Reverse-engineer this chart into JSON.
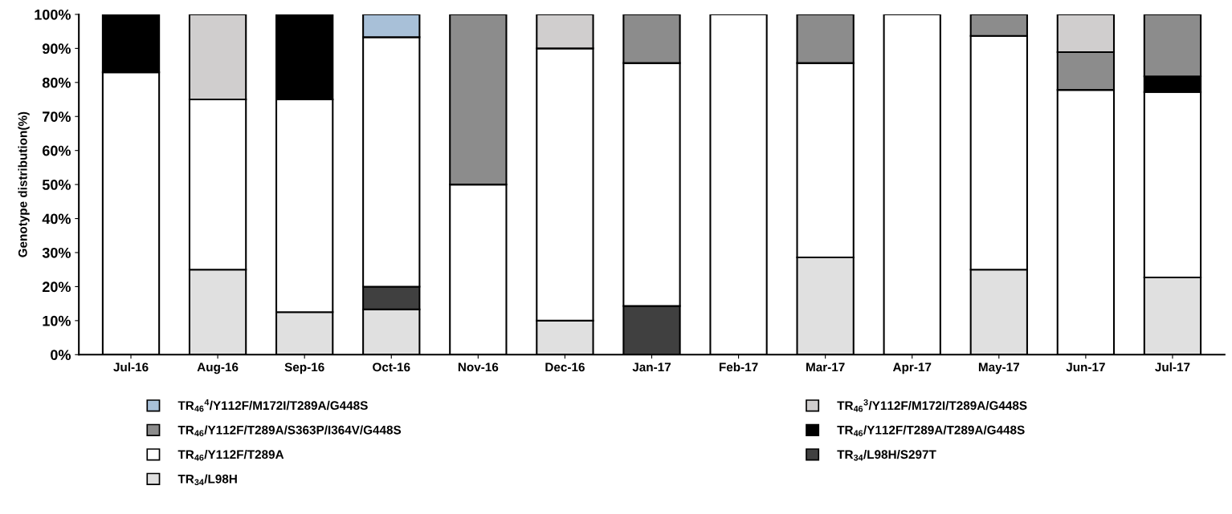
{
  "chart_data": {
    "type": "bar",
    "stacked": true,
    "ylabel": "Genotype distribution(%)",
    "categories": [
      "Jul-16",
      "Aug-16",
      "Sep-16",
      "Oct-16",
      "Nov-16",
      "Dec-16",
      "Jan-17",
      "Feb-17",
      "Mar-17",
      "Apr-17",
      "May-17",
      "Jun-17",
      "Jul-17"
    ],
    "ylim": [
      0,
      100
    ],
    "yticks": [
      {
        "value": 0,
        "label": "0%"
      },
      {
        "value": 10,
        "label": "10%"
      },
      {
        "value": 20,
        "label": "20%"
      },
      {
        "value": 30,
        "label": "30%"
      },
      {
        "value": 40,
        "label": "40%"
      },
      {
        "value": 50,
        "label": "50%"
      },
      {
        "value": 60,
        "label": "60%"
      },
      {
        "value": 70,
        "label": "70%"
      },
      {
        "value": 80,
        "label": "80%"
      },
      {
        "value": 90,
        "label": "90%"
      },
      {
        "value": 100,
        "label": "100%"
      }
    ],
    "grid": false,
    "legend": "bottom",
    "series": [
      {
        "name": "TR$_{34}$/L98H",
        "color": "#e0e0e0",
        "values": [
          0,
          25,
          12.5,
          13.3,
          0,
          10,
          0,
          0,
          28.6,
          0,
          25,
          0,
          22.7
        ]
      },
      {
        "name": "TR$_{34}$/L98H/S297T",
        "color": "#404040",
        "values": [
          0,
          0,
          0,
          6.7,
          0,
          0,
          14.3,
          0,
          0,
          0,
          0,
          0,
          0
        ]
      },
      {
        "name": "TR$_{46}$/Y112F/T289A",
        "color": "#ffffff",
        "values": [
          83,
          50,
          62.5,
          73.3,
          50,
          80,
          71.4,
          100,
          57.1,
          100,
          68.7,
          77.8,
          54.5
        ]
      },
      {
        "name": "TR$_{46}$/Y112F/T289A/T289A/G448S",
        "color": "#000000",
        "values": [
          17,
          0,
          25,
          0,
          0,
          0,
          0,
          0,
          0,
          0,
          0,
          0,
          4.6
        ]
      },
      {
        "name": "TR$_{46}$/Y112F/T289A/S363P/I364V/G448S",
        "color": "#8c8c8c",
        "values": [
          0,
          0,
          0,
          0,
          50,
          0,
          14.3,
          0,
          14.3,
          0,
          6.3,
          11.1,
          18.2
        ]
      },
      {
        "name": "TR$_{46}$$^{3}$/Y112F/M172I/T289A/G448S",
        "color": "#d0cece",
        "values": [
          0,
          25,
          0,
          0,
          0,
          10,
          0,
          0,
          0,
          0,
          0,
          11.1,
          0
        ]
      },
      {
        "name": "TR$_{46}$$^{4}$/Y112F/M172I/T289A/G448S",
        "color": "#a8c0d8",
        "values": [
          0,
          0,
          0,
          6.7,
          0,
          0,
          0,
          0,
          0,
          0,
          0,
          0,
          0
        ]
      }
    ]
  }
}
